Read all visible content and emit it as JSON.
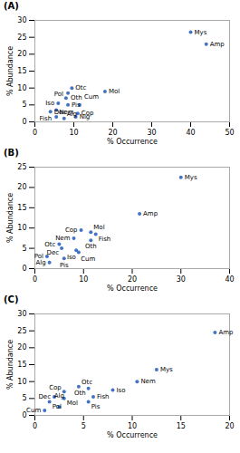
{
  "chart_data": [
    {
      "type": "scatter",
      "title": "(A)",
      "xlabel": "% Occurrence",
      "ylabel": "% Abundance",
      "color": "#4472C4",
      "xlim": [
        0,
        50
      ],
      "ylim": [
        0,
        30
      ],
      "xticks": [
        0,
        10,
        20,
        30,
        40,
        50
      ],
      "yticks": [
        0,
        5,
        10,
        15,
        20,
        25,
        30
      ],
      "labels": [
        "Mys",
        "Amp",
        "Mol",
        "Otc",
        "Oth",
        "Pol",
        "Iso",
        "Pis",
        "Cum",
        "Fish",
        "Dec",
        "Cop",
        "Nem",
        "Nlg",
        "Alg"
      ],
      "x": [
        40.0,
        44.0,
        18.0,
        9.5,
        8.5,
        8.0,
        6.0,
        8.5,
        11.5,
        5.5,
        4.0,
        11.0,
        5.5,
        10.5,
        7.5
      ],
      "y": [
        26.5,
        23.0,
        9.0,
        10.0,
        8.5,
        7.0,
        5.5,
        5.0,
        5.0,
        3.5,
        3.0,
        2.5,
        1.5,
        1.5,
        1.0
      ]
    },
    {
      "type": "scatter",
      "title": "(B)",
      "xlabel": "% Occurrence",
      "ylabel": "% Abundance",
      "color": "#4472C4",
      "xlim": [
        0,
        40
      ],
      "ylim": [
        0,
        25
      ],
      "xticks": [
        0,
        10,
        20,
        30,
        40
      ],
      "yticks": [
        0,
        5,
        10,
        15,
        20,
        25
      ],
      "labels": [
        "Mys",
        "Amp",
        "Cop",
        "Mol",
        "Fish",
        "Nem",
        "Oth",
        "Otc",
        "Dec",
        "Cum",
        "Iso",
        "Pol",
        "Pis",
        "Alg"
      ],
      "x": [
        30.0,
        21.5,
        9.5,
        11.5,
        12.5,
        8.0,
        11.5,
        5.0,
        5.5,
        8.5,
        9.0,
        2.5,
        6.0,
        3.0
      ],
      "y": [
        22.5,
        13.5,
        9.5,
        9.0,
        8.5,
        7.5,
        7.0,
        6.0,
        5.0,
        4.5,
        4.0,
        3.0,
        2.5,
        1.5
      ]
    },
    {
      "type": "scatter",
      "title": "(C)",
      "xlabel": "% Occurrence",
      "ylabel": "% Abundance",
      "color": "#4472C4",
      "xlim": [
        0,
        20
      ],
      "ylim": [
        0,
        30
      ],
      "xticks": [
        0,
        5,
        10,
        15,
        20
      ],
      "yticks": [
        0,
        5,
        10,
        15,
        20,
        25,
        30
      ],
      "labels": [
        "Amp",
        "Mys",
        "Nem",
        "Otc",
        "Oth",
        "Iso",
        "Cop",
        "Fish",
        "Dec",
        "Mol",
        "Pis",
        "Pol",
        "Alg",
        "Cum"
      ],
      "x": [
        18.5,
        12.5,
        10.5,
        4.5,
        5.5,
        8.0,
        3.0,
        6.0,
        2.0,
        3.0,
        5.5,
        1.5,
        2.5,
        1.0
      ],
      "y": [
        24.5,
        13.5,
        10.0,
        8.5,
        8.0,
        7.5,
        7.0,
        5.5,
        5.5,
        5.0,
        4.0,
        4.0,
        2.5,
        1.5
      ]
    }
  ]
}
